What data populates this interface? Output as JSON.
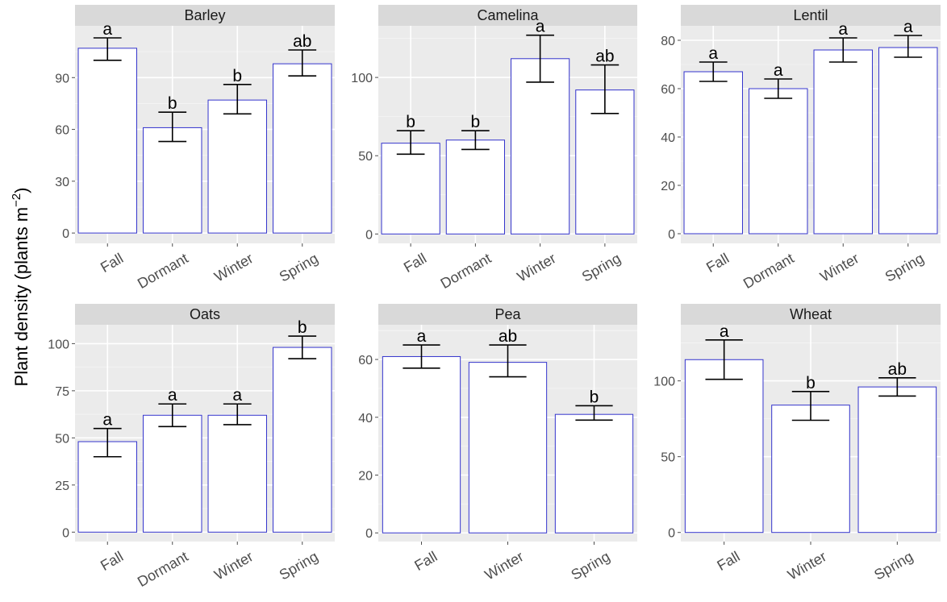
{
  "chart_data": {
    "type": "bar",
    "ylabel": "Plant density (plants m",
    "ylabel_sup": "−2",
    "ylabel_close": ")",
    "colors": {
      "panel_bg": "#ebebeb",
      "strip_bg": "#d9d9d9",
      "grid": "#ffffff",
      "bar_fill": "#ffffff",
      "bar_border": "#3333cc",
      "errorbar": "#000000"
    },
    "facets": [
      {
        "title": "Barley",
        "categories": [
          "Fall",
          "Dormant",
          "Winter",
          "Spring"
        ],
        "values": [
          107,
          61,
          77,
          98
        ],
        "err_low": [
          100,
          53,
          69,
          91
        ],
        "err_high": [
          113,
          70,
          86,
          106
        ],
        "letters": [
          "a",
          "b",
          "b",
          "ab"
        ],
        "ylim": [
          -6,
          120
        ],
        "yticks": [
          0,
          30,
          60,
          90
        ]
      },
      {
        "title": "Camelina",
        "categories": [
          "Fall",
          "Dormant",
          "Winter",
          "Spring"
        ],
        "values": [
          58,
          60,
          112,
          92
        ],
        "err_low": [
          51,
          54,
          97,
          77
        ],
        "err_high": [
          66,
          66,
          127,
          108
        ],
        "letters": [
          "b",
          "b",
          "a",
          "ab"
        ],
        "ylim": [
          -6,
          133
        ],
        "yticks": [
          0,
          50,
          100
        ]
      },
      {
        "title": "Lentil",
        "categories": [
          "Fall",
          "Dormant",
          "Winter",
          "Spring"
        ],
        "values": [
          67,
          60,
          76,
          77
        ],
        "err_low": [
          63,
          56,
          71,
          73
        ],
        "err_high": [
          71,
          64,
          81,
          82
        ],
        "letters": [
          "a",
          "a",
          "a",
          "a"
        ],
        "ylim": [
          -4,
          86
        ],
        "yticks": [
          0,
          20,
          40,
          60,
          80
        ]
      },
      {
        "title": "Oats",
        "categories": [
          "Fall",
          "Dormant",
          "Winter",
          "Spring"
        ],
        "values": [
          48,
          62,
          62,
          98
        ],
        "err_low": [
          40,
          56,
          57,
          92
        ],
        "err_high": [
          55,
          68,
          68,
          104
        ],
        "letters": [
          "a",
          "a",
          "a",
          "b"
        ],
        "ylim": [
          -5,
          110
        ],
        "yticks": [
          0,
          25,
          50,
          75,
          100
        ]
      },
      {
        "title": "Pea",
        "categories": [
          "Fall",
          "Winter",
          "Spring"
        ],
        "values": [
          61,
          59,
          41
        ],
        "err_low": [
          57,
          54,
          39
        ],
        "err_high": [
          65,
          65,
          44
        ],
        "letters": [
          "a",
          "ab",
          "b"
        ],
        "ylim": [
          -3,
          72
        ],
        "yticks": [
          0,
          20,
          40,
          60
        ]
      },
      {
        "title": "Wheat",
        "categories": [
          "Fall",
          "Winter",
          "Spring"
        ],
        "values": [
          114,
          84,
          96
        ],
        "err_low": [
          101,
          74,
          90
        ],
        "err_high": [
          127,
          93,
          102
        ],
        "letters": [
          "a",
          "b",
          "ab"
        ],
        "ylim": [
          -6,
          137
        ],
        "yticks": [
          0,
          50,
          100
        ]
      }
    ]
  }
}
